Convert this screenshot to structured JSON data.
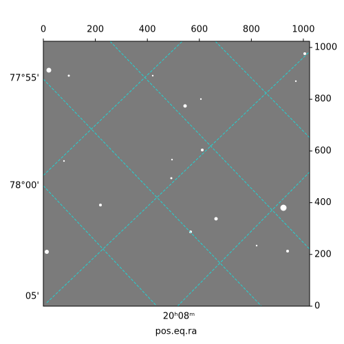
{
  "chart_data": {
    "type": "image",
    "xlabel": "pos.eq.ra",
    "xlim": [
      0,
      1024
    ],
    "ylim": [
      0,
      1024
    ],
    "xticks": [
      0,
      200,
      400,
      600,
      800,
      1000
    ],
    "yticks": [
      0,
      200,
      400,
      600,
      800,
      1000
    ],
    "dec_ticks": [
      "77°55'",
      "78°00'",
      "05'"
    ],
    "ra_ticks": [
      "20ʰ08ᵐ"
    ]
  }
}
